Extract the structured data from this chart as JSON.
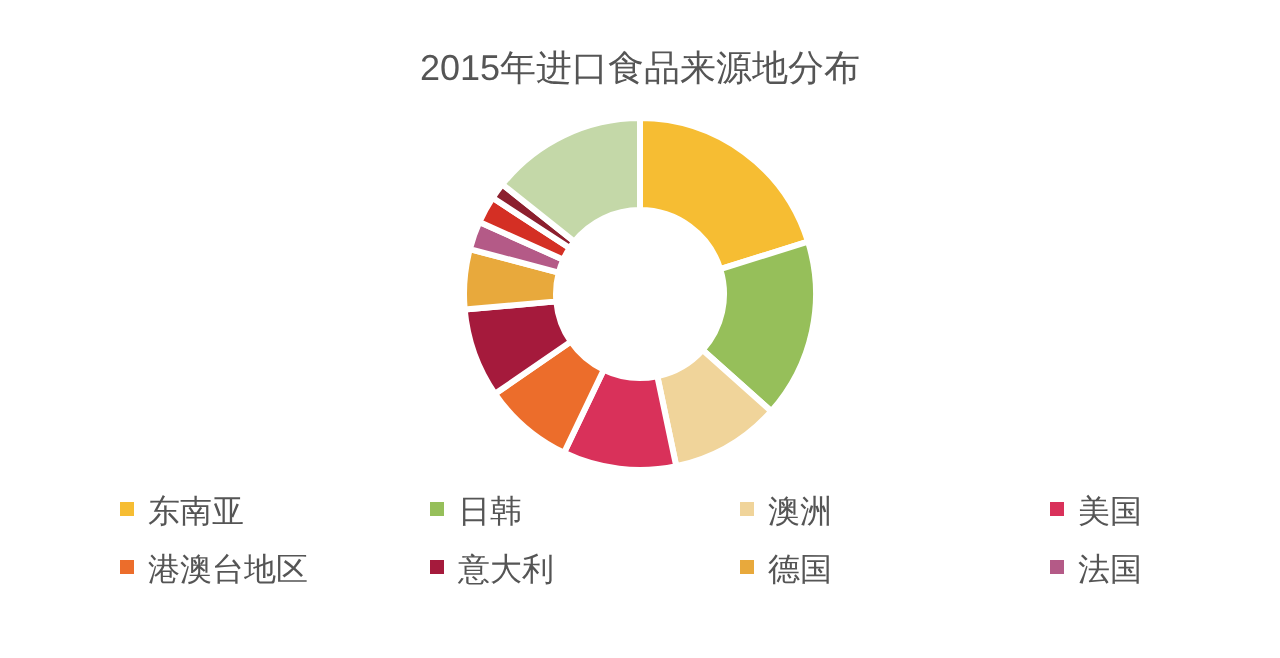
{
  "chart_data": {
    "type": "donut",
    "title": "2015年进口食品来源地分布",
    "categories": [
      "东南亚",
      "日韩",
      "澳洲",
      "美国",
      "港澳台地区",
      "意大利",
      "德国",
      "法国",
      null,
      null,
      null
    ],
    "values": [
      20.2,
      16.4,
      10.1,
      10.4,
      8.3,
      8.2,
      5.5,
      2.6,
      2.5,
      1.5,
      14.3
    ],
    "colors": [
      "#f6bd33",
      "#96bf5a",
      "#f0d49a",
      "#d9315a",
      "#ec6d2b",
      "#a51a3c",
      "#e8a93c",
      "#b45a87",
      "#d42f24",
      "#8c1f2e",
      "#c4d8a8"
    ],
    "legend": "bottom"
  }
}
